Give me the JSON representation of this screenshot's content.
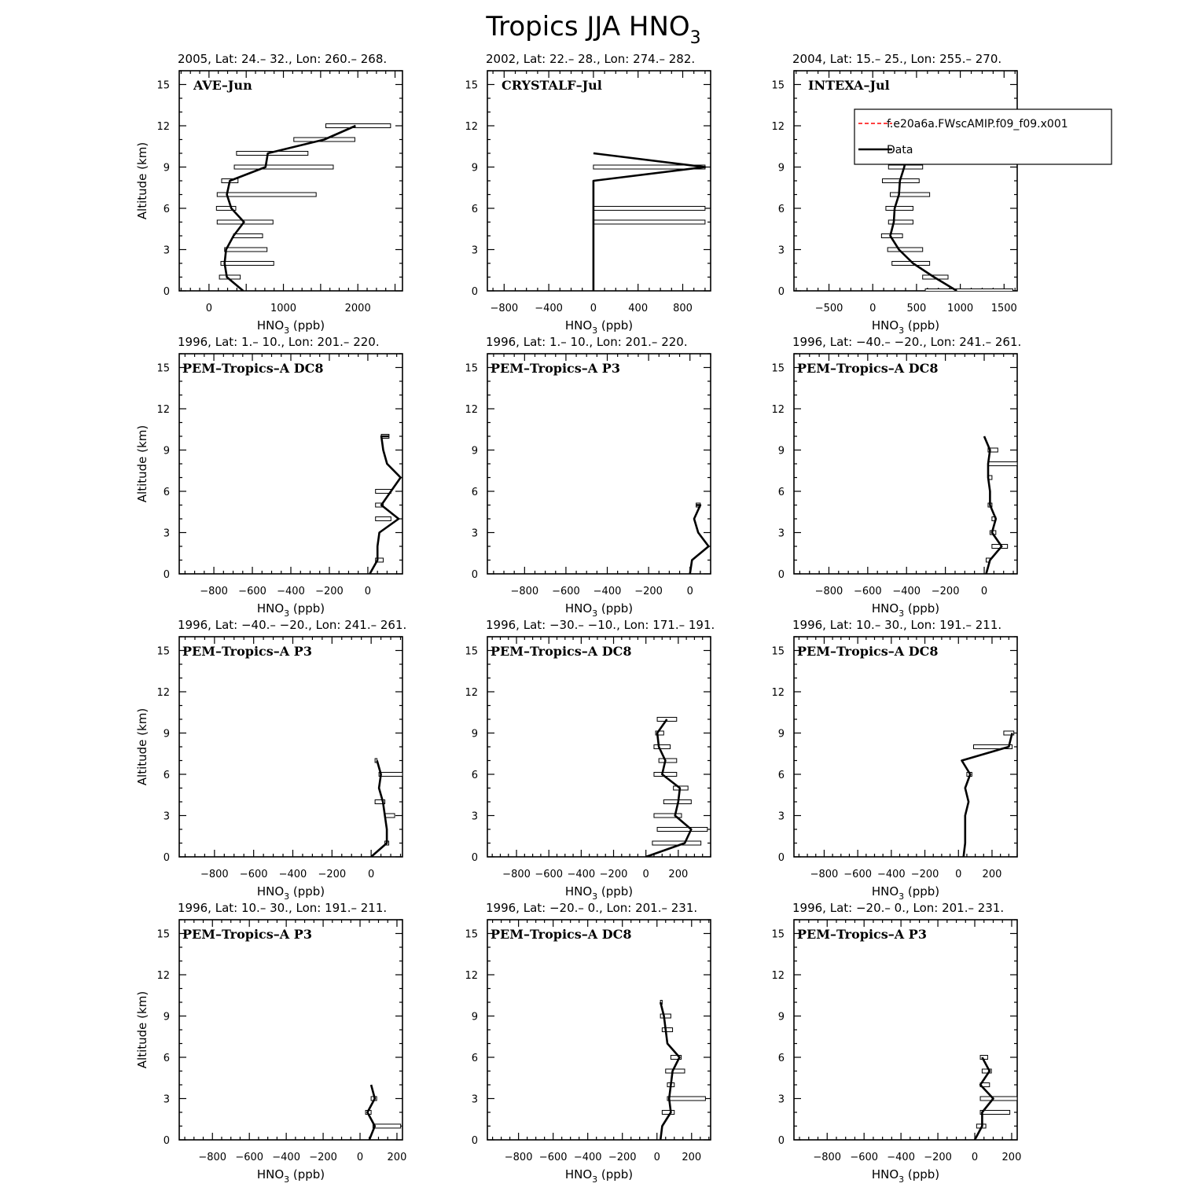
{
  "figure": {
    "title": "Tropics JJA HNO",
    "title_sub": "3",
    "xlabel_main": "HNO",
    "xlabel_sub": "3",
    "xlabel_unit": " (ppb)",
    "ylabel": "Altitude (km)"
  },
  "legend": {
    "entries": [
      {
        "label": "f.e20a6a.FWscAMIP.f09_f09.x001",
        "color": "#ff0000",
        "dash": true
      },
      {
        "label": "Data",
        "color": "#000000",
        "dash": false
      }
    ]
  },
  "chart_data": [
    {
      "type": "line",
      "subtitle": "2005, Lat: 24.– 32., Lon: 260.– 268.",
      "label": "AVE–Jun",
      "xlim": [
        -400,
        2600
      ],
      "ylim": [
        0,
        16
      ],
      "xticks": [
        0,
        500,
        1000,
        1500,
        2000,
        2500
      ],
      "xticklabels": [
        "0",
        "",
        "1000",
        "",
        "2000",
        ""
      ],
      "yticks": [
        0,
        3,
        6,
        9,
        12,
        15
      ],
      "profile": [
        [
          460,
          0
        ],
        [
          240,
          1
        ],
        [
          210,
          2
        ],
        [
          230,
          3
        ],
        [
          330,
          4
        ],
        [
          470,
          5
        ],
        [
          300,
          6
        ],
        [
          240,
          7
        ],
        [
          280,
          8
        ],
        [
          760,
          9
        ],
        [
          790,
          10
        ],
        [
          1550,
          11
        ],
        [
          1970,
          12
        ]
      ],
      "bars": [
        [
          140,
          420,
          1
        ],
        [
          160,
          870,
          2
        ],
        [
          210,
          780,
          3
        ],
        [
          330,
          720,
          4
        ],
        [
          110,
          860,
          5
        ],
        [
          100,
          360,
          6
        ],
        [
          110,
          1440,
          7
        ],
        [
          170,
          390,
          8
        ],
        [
          340,
          1670,
          9
        ],
        [
          370,
          1330,
          10
        ],
        [
          1140,
          1960,
          11
        ],
        [
          1570,
          2440,
          12
        ]
      ]
    },
    {
      "type": "line",
      "subtitle": "2002, Lat: 22.– 28., Lon: 274.– 282.",
      "label": "CRYSTALF–Jul",
      "xlim": [
        -950,
        1050
      ],
      "ylim": [
        0,
        16
      ],
      "xticks": [
        -800,
        -400,
        0,
        400,
        800
      ],
      "xticklabels": [
        "−800",
        "−400",
        "0",
        "400",
        "800"
      ],
      "yticks": [
        0,
        3,
        6,
        9,
        12,
        15
      ],
      "profile": [
        [
          0,
          0
        ],
        [
          0,
          5
        ],
        [
          0,
          6
        ],
        [
          0,
          8
        ],
        [
          1000,
          9
        ],
        [
          0,
          10
        ]
      ],
      "bars": [
        [
          0,
          1000,
          5
        ],
        [
          0,
          1000,
          6
        ],
        [
          0,
          1000,
          9
        ]
      ]
    },
    {
      "type": "line",
      "subtitle": "2004, Lat: 15.– 25., Lon: 255.– 270.",
      "label": "INTEXA–Jul",
      "xlim": [
        -900,
        1650
      ],
      "ylim": [
        0,
        16
      ],
      "xticks": [
        -500,
        0,
        500,
        1000,
        1500
      ],
      "xticklabels": [
        "−500",
        "0",
        "500",
        "1000",
        "1500"
      ],
      "yticks": [
        0,
        3,
        6,
        9,
        12,
        15
      ],
      "profile": [
        [
          960,
          0
        ],
        [
          700,
          1
        ],
        [
          460,
          2
        ],
        [
          300,
          3
        ],
        [
          200,
          4
        ],
        [
          240,
          5
        ],
        [
          250,
          6
        ],
        [
          300,
          7
        ],
        [
          310,
          8
        ],
        [
          360,
          9
        ],
        [
          390,
          10
        ],
        [
          560,
          11
        ]
      ],
      "bars": [
        [
          600,
          1600,
          0
        ],
        [
          570,
          860,
          1
        ],
        [
          220,
          650,
          2
        ],
        [
          170,
          570,
          3
        ],
        [
          100,
          340,
          4
        ],
        [
          180,
          460,
          5
        ],
        [
          150,
          460,
          6
        ],
        [
          200,
          650,
          7
        ],
        [
          110,
          530,
          8
        ],
        [
          180,
          570,
          9
        ],
        [
          250,
          520,
          10
        ],
        [
          480,
          650,
          11
        ]
      ]
    },
    {
      "type": "line",
      "subtitle": "1996, Lat: 1.– 10., Lon: 201.– 220.",
      "label": "PEM–Tropics–A DC8",
      "xlim": [
        -980,
        180
      ],
      "ylim": [
        0,
        16
      ],
      "xticks": [
        -800,
        -600,
        -400,
        -200,
        0
      ],
      "xticklabels": [
        "−800",
        "−600",
        "−400",
        "−200",
        "0"
      ],
      "yticks": [
        0,
        3,
        6,
        9,
        12,
        15
      ],
      "profile": [
        [
          10,
          0
        ],
        [
          50,
          1
        ],
        [
          50,
          2
        ],
        [
          60,
          3
        ],
        [
          160,
          4
        ],
        [
          70,
          5
        ],
        [
          120,
          6
        ],
        [
          170,
          7
        ],
        [
          100,
          8
        ],
        [
          80,
          9
        ],
        [
          70,
          10
        ],
        [
          110,
          10
        ]
      ],
      "bars": [
        [
          40,
          80,
          1
        ],
        [
          40,
          120,
          4
        ],
        [
          40,
          80,
          5
        ],
        [
          40,
          120,
          6
        ],
        [
          70,
          110,
          10
        ]
      ]
    },
    {
      "type": "line",
      "subtitle": "1996, Lat: 1.– 10., Lon: 201.– 220.",
      "label": "PEM–Tropics–A P3",
      "xlim": [
        -980,
        100
      ],
      "ylim": [
        0,
        16
      ],
      "xticks": [
        -800,
        -600,
        -400,
        -200,
        0
      ],
      "xticklabels": [
        "−800",
        "−600",
        "−400",
        "−200",
        "0"
      ],
      "yticks": [
        0,
        3,
        6,
        9,
        12,
        15
      ],
      "profile": [
        [
          0,
          0
        ],
        [
          10,
          1
        ],
        [
          90,
          2
        ],
        [
          40,
          3
        ],
        [
          20,
          4
        ],
        [
          50,
          5
        ],
        [
          30,
          5
        ]
      ],
      "bars": [
        [
          30,
          50,
          5
        ]
      ]
    },
    {
      "type": "line",
      "subtitle": "1996, Lat: −40.– −20., Lon: 241.– 261.",
      "label": "PEM–Tropics–A DC8",
      "xlim": [
        -980,
        170
      ],
      "ylim": [
        0,
        16
      ],
      "xticks": [
        -800,
        -600,
        -400,
        -200,
        0
      ],
      "xticklabels": [
        "−800",
        "−600",
        "−400",
        "−200",
        "0"
      ],
      "yticks": [
        0,
        3,
        6,
        9,
        12,
        15
      ],
      "profile": [
        [
          10,
          0
        ],
        [
          30,
          1
        ],
        [
          90,
          2
        ],
        [
          40,
          3
        ],
        [
          60,
          4
        ],
        [
          30,
          5
        ],
        [
          30,
          6
        ],
        [
          20,
          7
        ],
        [
          20,
          8
        ],
        [
          30,
          9
        ],
        [
          0,
          10
        ]
      ],
      "bars": [
        [
          10,
          30,
          1
        ],
        [
          40,
          120,
          2
        ],
        [
          30,
          60,
          3
        ],
        [
          40,
          60,
          4
        ],
        [
          20,
          40,
          5
        ],
        [
          20,
          40,
          7
        ],
        [
          20,
          170,
          8
        ],
        [
          20,
          70,
          9
        ]
      ]
    },
    {
      "type": "line",
      "subtitle": "1996, Lat: −40.– −20., Lon: 241.– 261.",
      "label": "PEM–Tropics–A P3",
      "xlim": [
        -980,
        160
      ],
      "ylim": [
        0,
        16
      ],
      "xticks": [
        -800,
        -600,
        -400,
        -200,
        0
      ],
      "xticklabels": [
        "−800",
        "−600",
        "−400",
        "−200",
        "0"
      ],
      "yticks": [
        0,
        3,
        6,
        9,
        12,
        15
      ],
      "profile": [
        [
          0,
          0
        ],
        [
          80,
          1
        ],
        [
          80,
          2
        ],
        [
          70,
          3
        ],
        [
          60,
          4
        ],
        [
          40,
          5
        ],
        [
          50,
          6
        ],
        [
          30,
          7
        ]
      ],
      "bars": [
        [
          70,
          90,
          1
        ],
        [
          70,
          120,
          3
        ],
        [
          20,
          70,
          4
        ],
        [
          40,
          160,
          6
        ],
        [
          20,
          30,
          7
        ]
      ]
    },
    {
      "type": "line",
      "subtitle": "1996, Lat: −30.– −10., Lon: 171.– 191.",
      "label": "PEM–Tropics–A DC8",
      "xlim": [
        -980,
        400
      ],
      "ylim": [
        0,
        16
      ],
      "xticks": [
        -800,
        -600,
        -400,
        -200,
        0,
        200
      ],
      "xticklabels": [
        "−800",
        "−600",
        "−400",
        "−200",
        "0",
        "200"
      ],
      "yticks": [
        0,
        3,
        6,
        9,
        12,
        15
      ],
      "profile": [
        [
          0,
          0
        ],
        [
          240,
          1
        ],
        [
          280,
          2
        ],
        [
          180,
          3
        ],
        [
          200,
          4
        ],
        [
          210,
          5
        ],
        [
          100,
          6
        ],
        [
          120,
          7
        ],
        [
          80,
          8
        ],
        [
          70,
          9
        ],
        [
          130,
          10
        ]
      ],
      "bars": [
        [
          40,
          340,
          1
        ],
        [
          70,
          380,
          2
        ],
        [
          50,
          220,
          3
        ],
        [
          110,
          280,
          4
        ],
        [
          170,
          260,
          5
        ],
        [
          50,
          190,
          6
        ],
        [
          80,
          190,
          7
        ],
        [
          50,
          150,
          8
        ],
        [
          60,
          110,
          9
        ],
        [
          70,
          190,
          10
        ]
      ]
    },
    {
      "type": "line",
      "subtitle": "1996, Lat: 10.– 30., Lon: 191.– 211.",
      "label": "PEM–Tropics–A DC8",
      "xlim": [
        -980,
        350
      ],
      "ylim": [
        0,
        16
      ],
      "xticks": [
        -800,
        -600,
        -400,
        -200,
        0,
        200
      ],
      "xticklabels": [
        "−800",
        "−600",
        "−400",
        "−200",
        "0",
        "200"
      ],
      "yticks": [
        0,
        3,
        6,
        9,
        12,
        15
      ],
      "profile": [
        [
          30,
          0
        ],
        [
          40,
          1
        ],
        [
          40,
          2
        ],
        [
          40,
          3
        ],
        [
          60,
          4
        ],
        [
          40,
          5
        ],
        [
          70,
          6
        ],
        [
          20,
          7
        ],
        [
          300,
          8
        ],
        [
          320,
          9
        ]
      ],
      "bars": [
        [
          50,
          80,
          6
        ],
        [
          90,
          320,
          8
        ],
        [
          270,
          330,
          9
        ]
      ]
    },
    {
      "type": "line",
      "subtitle": "1996, Lat: 10.– 30., Lon: 191.– 211.",
      "label": "PEM–Tropics–A P3",
      "xlim": [
        -980,
        230
      ],
      "ylim": [
        0,
        16
      ],
      "xticks": [
        -800,
        -600,
        -400,
        -200,
        0,
        200
      ],
      "xticklabels": [
        "−800",
        "−600",
        "−400",
        "−200",
        "0",
        "200"
      ],
      "yticks": [
        0,
        3,
        6,
        9,
        12,
        15
      ],
      "profile": [
        [
          50,
          0
        ],
        [
          80,
          1
        ],
        [
          40,
          2
        ],
        [
          80,
          3
        ],
        [
          60,
          4
        ]
      ],
      "bars": [
        [
          70,
          220,
          1
        ],
        [
          30,
          60,
          2
        ],
        [
          60,
          90,
          3
        ]
      ]
    },
    {
      "type": "line",
      "subtitle": "1996, Lat: −20.– 0., Lon: 201.– 231.",
      "label": "PEM–Tropics–A DC8",
      "xlim": [
        -980,
        310
      ],
      "ylim": [
        0,
        16
      ],
      "xticks": [
        -800,
        -600,
        -400,
        -200,
        0,
        200
      ],
      "xticklabels": [
        "−800",
        "−600",
        "−400",
        "−200",
        "0",
        "200"
      ],
      "yticks": [
        0,
        3,
        6,
        9,
        12,
        15
      ],
      "profile": [
        [
          20,
          0
        ],
        [
          30,
          1
        ],
        [
          80,
          2
        ],
        [
          70,
          3
        ],
        [
          80,
          4
        ],
        [
          90,
          5
        ],
        [
          130,
          6
        ],
        [
          60,
          7
        ],
        [
          50,
          8
        ],
        [
          40,
          9
        ],
        [
          20,
          10
        ]
      ],
      "bars": [
        [
          30,
          100,
          2
        ],
        [
          60,
          280,
          3
        ],
        [
          60,
          100,
          4
        ],
        [
          50,
          160,
          5
        ],
        [
          80,
          140,
          6
        ],
        [
          30,
          90,
          8
        ],
        [
          20,
          80,
          9
        ],
        [
          20,
          30,
          10
        ]
      ]
    },
    {
      "type": "line",
      "subtitle": "1996, Lat: −20.– 0., Lon: 201.– 231.",
      "label": "PEM–Tropics–A P3",
      "xlim": [
        -980,
        230
      ],
      "ylim": [
        0,
        16
      ],
      "xticks": [
        -800,
        -600,
        -400,
        -200,
        0,
        200
      ],
      "xticklabels": [
        "−800",
        "−600",
        "−400",
        "−200",
        "0",
        "200"
      ],
      "yticks": [
        0,
        3,
        6,
        9,
        12,
        15
      ],
      "profile": [
        [
          0,
          0
        ],
        [
          40,
          1
        ],
        [
          40,
          2
        ],
        [
          100,
          3
        ],
        [
          30,
          4
        ],
        [
          80,
          5
        ],
        [
          40,
          6
        ]
      ],
      "bars": [
        [
          10,
          60,
          1
        ],
        [
          30,
          190,
          2
        ],
        [
          30,
          230,
          3
        ],
        [
          30,
          80,
          4
        ],
        [
          40,
          90,
          5
        ],
        [
          30,
          70,
          6
        ]
      ]
    }
  ]
}
